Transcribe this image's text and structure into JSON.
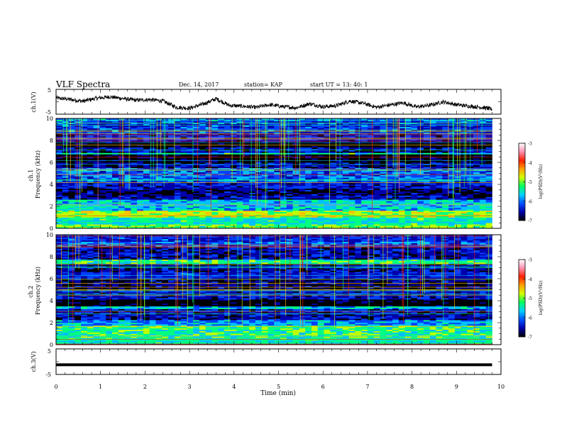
{
  "header": {
    "title": "VLF Spectra",
    "date": "Dec. 14, 2017",
    "station": "station= KAP",
    "start": "start  UT  =   13: 40: 1"
  },
  "colors": {
    "colormap": [
      "#000000",
      "#0000aa",
      "#0040ff",
      "#00c0ff",
      "#00ff80",
      "#c0ff00",
      "#ffc000",
      "#ff2000",
      "#ff80a0",
      "#ffffff"
    ]
  },
  "chart_data": [
    {
      "type": "line",
      "name": "ch1-waveform",
      "ylabel": "ch.1(V)",
      "ylim": [
        -5,
        5
      ],
      "yticks": [
        "5",
        "-5"
      ],
      "x": [
        0.0,
        0.3,
        0.6,
        0.9,
        1.2,
        1.5,
        1.8,
        2.1,
        2.4,
        2.7,
        3.0,
        3.3,
        3.6,
        3.9,
        4.2,
        4.5,
        4.8,
        5.1,
        5.4,
        5.7,
        6.0,
        6.3,
        6.6,
        6.9,
        7.2,
        7.5,
        7.8,
        8.1,
        8.4,
        8.7,
        9.0,
        9.3,
        9.6,
        9.8
      ],
      "values": [
        1.5,
        1.0,
        0.2,
        1.4,
        2.0,
        1.3,
        0.6,
        0.9,
        0.3,
        -2.2,
        -2.6,
        -1.0,
        1.2,
        -1.5,
        -1.8,
        -2.3,
        -1.2,
        -2.0,
        -2.4,
        -0.8,
        -2.0,
        -1.6,
        0.3,
        -0.6,
        -2.2,
        -1.3,
        -0.4,
        -2.1,
        -1.4,
        0.0,
        -1.2,
        -1.8,
        -2.3,
        -3.0
      ]
    },
    {
      "type": "heatmap",
      "name": "ch1-spectrogram",
      "ylabel": "ch.1\nFrequency  (kHz)",
      "ylim": [
        0,
        10
      ],
      "yticks": [
        "0",
        "2",
        "4",
        "6",
        "8",
        "10"
      ],
      "colorbar_label": "log(PSD)(V²/Hz)",
      "colorbar_ticks": [
        "-3",
        "-4",
        "-5",
        "-6",
        "-7"
      ],
      "colorbar_range": [
        -7,
        -3
      ],
      "bands": [
        {
          "f": [
            0.0,
            0.4
          ],
          "level": -4.8
        },
        {
          "f": [
            0.4,
            1.0
          ],
          "level": -5.2
        },
        {
          "f": [
            1.0,
            1.6
          ],
          "level": -4.6
        },
        {
          "f": [
            1.6,
            2.6
          ],
          "level": -5.4
        },
        {
          "f": [
            2.6,
            3.0
          ],
          "level": -6.3
        },
        {
          "f": [
            3.0,
            3.6
          ],
          "level": -6.5
        },
        {
          "f": [
            3.6,
            4.3
          ],
          "level": -6.2
        },
        {
          "f": [
            4.3,
            5.5
          ],
          "level": -5.8
        },
        {
          "f": [
            5.5,
            6.0
          ],
          "level": -6.4
        },
        {
          "f": [
            6.0,
            6.7
          ],
          "level": -6.8
        },
        {
          "f": [
            6.7,
            6.9
          ],
          "level": -5.2
        },
        {
          "f": [
            6.9,
            7.4
          ],
          "level": -6.3
        },
        {
          "f": [
            7.4,
            7.9
          ],
          "level": -6.9
        },
        {
          "f": [
            7.9,
            8.6
          ],
          "level": -6.2
        },
        {
          "f": [
            8.6,
            9.8
          ],
          "level": -6.0
        },
        {
          "f": [
            9.8,
            10.0
          ],
          "level": -5.6
        }
      ]
    },
    {
      "type": "heatmap",
      "name": "ch2-spectrogram",
      "ylabel": "ch.2\nFrequency  (kHz)",
      "ylim": [
        0,
        10
      ],
      "yticks": [
        "0",
        "2",
        "4",
        "6",
        "8",
        "10"
      ],
      "colorbar_label": "log(PSD)(V²/Hz)",
      "colorbar_ticks": [
        "-3",
        "-4",
        "-5",
        "-6",
        "-7"
      ],
      "colorbar_range": [
        -7,
        -3
      ],
      "bands": [
        {
          "f": [
            0.0,
            0.6
          ],
          "level": -5.2
        },
        {
          "f": [
            0.6,
            1.8
          ],
          "level": -5.0
        },
        {
          "f": [
            1.8,
            2.2
          ],
          "level": -5.6
        },
        {
          "f": [
            2.2,
            3.2
          ],
          "level": -6.3
        },
        {
          "f": [
            3.2,
            3.5
          ],
          "level": -5.4
        },
        {
          "f": [
            3.5,
            4.1
          ],
          "level": -6.9
        },
        {
          "f": [
            4.1,
            5.0
          ],
          "level": -6.2
        },
        {
          "f": [
            5.0,
            6.0
          ],
          "level": -6.5
        },
        {
          "f": [
            6.0,
            6.6
          ],
          "level": -6.1
        },
        {
          "f": [
            6.6,
            7.4
          ],
          "level": -6.4
        },
        {
          "f": [
            7.4,
            7.8
          ],
          "level": -5.0
        },
        {
          "f": [
            7.8,
            8.9
          ],
          "level": -6.3
        },
        {
          "f": [
            8.9,
            9.4
          ],
          "level": -5.8
        },
        {
          "f": [
            9.4,
            10.0
          ],
          "level": -6.1
        }
      ]
    },
    {
      "type": "line",
      "name": "ch3-waveform",
      "ylabel": "ch.3(V)",
      "ylim": [
        -5,
        5
      ],
      "yticks": [
        "5",
        "-5"
      ],
      "x": [
        0.0,
        9.8
      ],
      "values": [
        -1.2,
        -1.2
      ]
    }
  ],
  "xaxis": {
    "xlabel": "Time  (min)",
    "xlim": [
      0,
      10
    ],
    "ticks": [
      "0",
      "1",
      "2",
      "3",
      "4",
      "5",
      "6",
      "7",
      "8",
      "9",
      "10"
    ],
    "data_end": 9.8
  }
}
